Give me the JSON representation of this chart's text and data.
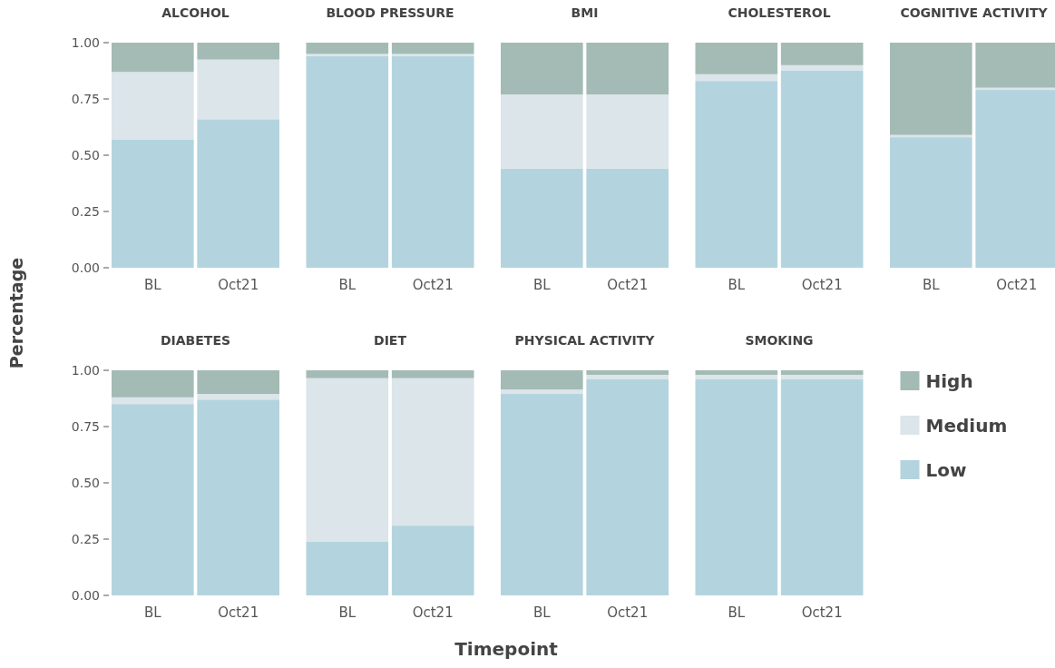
{
  "chart_data": [
    {
      "type": "bar",
      "title": "ALCOHOL",
      "ylabel": "Percentage",
      "categories": [
        "BL",
        "Oct21"
      ],
      "stacked": true,
      "ylim": [
        0,
        1
      ],
      "yticks": [
        {
          "value": 0,
          "label": "0.00"
        },
        {
          "value": 0.25,
          "label": "0.25"
        },
        {
          "value": 0.5,
          "label": "0.50"
        },
        {
          "value": 0.75,
          "label": "0.75"
        },
        {
          "value": 1,
          "label": "1.00"
        }
      ],
      "series": [
        {
          "color": "#b3d4de",
          "values": [
            0.57,
            0.66
          ]
        },
        {
          "color": "#dbe5ea",
          "values": [
            0.3,
            0.265
          ]
        },
        {
          "color": "#a3bbb4",
          "values": [
            0.13,
            0.075
          ]
        }
      ]
    },
    {
      "type": "bar",
      "title": "BLOOD PRESSURE",
      "categories": [
        "BL",
        "Oct21"
      ],
      "stacked": true,
      "ylim": [
        0,
        1
      ],
      "tick_labels": "x",
      "series": [
        {
          "color": "#b3d4de",
          "values": [
            0.94,
            0.94
          ]
        },
        {
          "color": "#dbe5ea",
          "values": [
            0.01,
            0.01
          ]
        },
        {
          "color": "#a3bbb4",
          "values": [
            0.05,
            0.05
          ]
        }
      ]
    },
    {
      "type": "bar",
      "title": "BMI",
      "categories": [
        "BL",
        "Oct21"
      ],
      "stacked": true,
      "ylim": [
        0,
        1
      ],
      "tick_labels": "x",
      "series": [
        {
          "color": "#b3d4de",
          "values": [
            0.44,
            0.44
          ]
        },
        {
          "color": "#dbe5ea",
          "values": [
            0.33,
            0.33
          ]
        },
        {
          "color": "#a3bbb4",
          "values": [
            0.23,
            0.23
          ]
        }
      ]
    },
    {
      "type": "bar",
      "title": "CHOLESTEROL",
      "categories": [
        "BL",
        "Oct21"
      ],
      "stacked": true,
      "ylim": [
        0,
        1
      ],
      "tick_labels": "x",
      "series": [
        {
          "color": "#b3d4de",
          "values": [
            0.83,
            0.875
          ]
        },
        {
          "color": "#dbe5ea",
          "values": [
            0.03,
            0.025
          ]
        },
        {
          "color": "#a3bbb4",
          "values": [
            0.14,
            0.1
          ]
        }
      ]
    },
    {
      "type": "bar",
      "title": "COGNITIVE ACTIVITY",
      "categories": [
        "BL",
        "Oct21"
      ],
      "stacked": true,
      "ylim": [
        0,
        1
      ],
      "tick_labels": "x",
      "series": [
        {
          "color": "#b3d4de",
          "values": [
            0.58,
            0.79
          ]
        },
        {
          "color": "#dbe5ea",
          "values": [
            0.01,
            0.01
          ]
        },
        {
          "color": "#a3bbb4",
          "values": [
            0.41,
            0.2
          ]
        }
      ]
    },
    {
      "type": "bar",
      "title": "DIABETES",
      "categories": [
        "BL",
        "Oct21"
      ],
      "stacked": true,
      "ylim": [
        0,
        1
      ],
      "yticks": [
        {
          "value": 0,
          "label": "0.00"
        },
        {
          "value": 0.25,
          "label": "0.25"
        },
        {
          "value": 0.5,
          "label": "0.50"
        },
        {
          "value": 0.75,
          "label": "0.75"
        },
        {
          "value": 1,
          "label": "1.00"
        }
      ],
      "series": [
        {
          "color": "#b3d4de",
          "values": [
            0.85,
            0.87
          ]
        },
        {
          "color": "#dbe5ea",
          "values": [
            0.03,
            0.025
          ]
        },
        {
          "color": "#a3bbb4",
          "values": [
            0.12,
            0.105
          ]
        }
      ]
    },
    {
      "type": "bar",
      "title": "DIET",
      "categories": [
        "BL",
        "Oct21"
      ],
      "stacked": true,
      "ylim": [
        0,
        1
      ],
      "tick_labels": "x",
      "series": [
        {
          "color": "#b3d4de",
          "values": [
            0.24,
            0.31
          ]
        },
        {
          "color": "#dbe5ea",
          "values": [
            0.725,
            0.655
          ]
        },
        {
          "color": "#a3bbb4",
          "values": [
            0.035,
            0.035
          ]
        }
      ]
    },
    {
      "type": "bar",
      "title": "PHYSICAL ACTIVITY",
      "xlabel": "Timepoint",
      "categories": [
        "BL",
        "Oct21"
      ],
      "stacked": true,
      "ylim": [
        0,
        1
      ],
      "tick_labels": "x",
      "series": [
        {
          "color": "#b3d4de",
          "values": [
            0.895,
            0.96
          ]
        },
        {
          "color": "#dbe5ea",
          "values": [
            0.02,
            0.02
          ]
        },
        {
          "color": "#a3bbb4",
          "values": [
            0.085,
            0.02
          ]
        }
      ]
    },
    {
      "type": "bar",
      "title": "SMOKING",
      "categories": [
        "BL",
        "Oct21"
      ],
      "stacked": true,
      "ylim": [
        0,
        1
      ],
      "tick_labels": "x",
      "legend": "right",
      "series": [
        {
          "name": "Low",
          "color": "#b3d4de",
          "values": [
            0.96,
            0.96
          ]
        },
        {
          "name": "Medium",
          "color": "#dbe5ea",
          "values": [
            0.02,
            0.02
          ]
        },
        {
          "name": "High",
          "color": "#a3bbb4",
          "values": [
            0.02,
            0.02
          ]
        }
      ]
    }
  ]
}
